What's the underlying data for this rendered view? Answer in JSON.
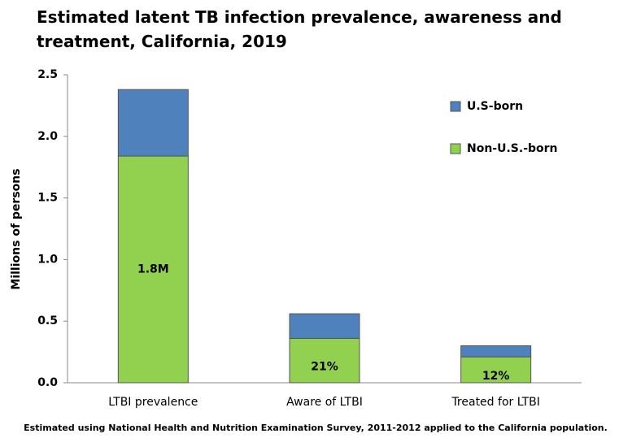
{
  "chart_data": {
    "type": "stacked_bar",
    "title": "Estimated latent TB infection prevalence, awareness and treatment, California, 2019",
    "ylabel": "Millions  of persons",
    "footnote": "Estimated using National Health and Nutrition Examination Survey, 2011-2012 applied to the California population.",
    "categories": [
      "LTBI prevalence",
      "Aware of LTBI",
      "Treated for LTBI"
    ],
    "series": [
      {
        "name": "Non-U.S.-born",
        "color": "#92d050",
        "values": [
          1.84,
          0.36,
          0.21
        ],
        "value_labels": [
          "1.8M",
          null,
          null
        ]
      },
      {
        "name": "U.S-born",
        "color": "#4f81bd",
        "values": [
          0.54,
          0.2,
          0.09
        ]
      }
    ],
    "annotations": [
      "21%",
      "12%"
    ],
    "ylim": [
      0,
      2.5
    ],
    "yticks": [
      {
        "value": 0,
        "label": "0.0"
      },
      0.5,
      {
        "value": 1,
        "label": "1.0"
      },
      1.5,
      {
        "value": 2,
        "label": "2.0"
      },
      2.5
    ],
    "legend": "upper right"
  }
}
